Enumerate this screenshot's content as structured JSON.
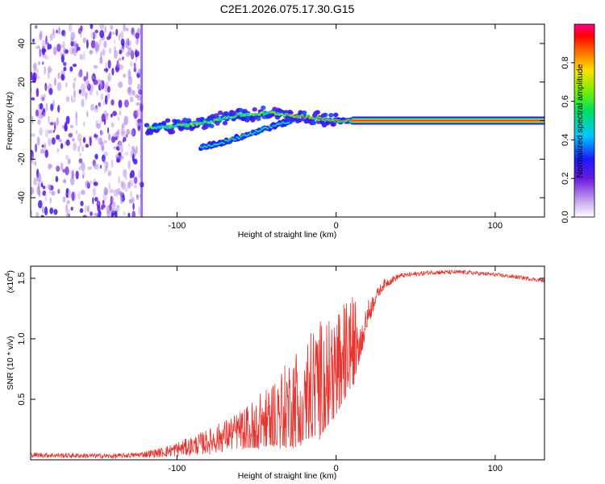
{
  "chart_data": [
    {
      "type": "heatmap",
      "title": "C2E1.2026.075.17.30.G15",
      "xlabel": "Height of straight line (km)",
      "ylabel": "Frequency (Hz)",
      "xlim": [
        -192,
        131
      ],
      "ylim": [
        -50,
        50
      ],
      "xticks": [
        -100,
        0,
        100
      ],
      "yticks": [
        -40,
        -20,
        0,
        20,
        40
      ],
      "xtick_labels": [
        "-100",
        "0",
        "100"
      ],
      "ytick_labels": [
        "-40",
        "-20",
        "0",
        "20",
        "40"
      ],
      "colorbar": {
        "label": "Normalized spectral amplitude",
        "range": [
          0,
          1
        ],
        "ticks": [
          0.0,
          0.2,
          0.4,
          0.6,
          0.8
        ],
        "tick_labels": [
          "0.0",
          "0.2",
          "0.4",
          "0.6",
          "0.8"
        ]
      },
      "features": [
        {
          "name": "scattered noise region",
          "x_range": [
            -192,
            -122
          ],
          "freq_range": [
            -50,
            50
          ],
          "amplitude": 0.15
        },
        {
          "name": "main frequency ridge",
          "points": [
            [
              -118,
              -4
            ],
            [
              -90,
              -2
            ],
            [
              -60,
              3
            ],
            [
              -40,
              4
            ],
            [
              -20,
              2
            ],
            [
              0,
              0
            ],
            [
              10,
              0
            ],
            [
              131,
              0
            ]
          ],
          "amplitude": 0.95
        },
        {
          "name": "secondary ridge",
          "points": [
            [
              -85,
              -14
            ],
            [
              -70,
              -11
            ],
            [
              -55,
              -7
            ],
            [
              -40,
              -3
            ],
            [
              -28,
              0
            ]
          ],
          "amplitude": 0.5
        }
      ]
    },
    {
      "type": "line",
      "xlabel": "Height of straight line (km)",
      "ylabel": "SNR (10 * v/v)",
      "scale_label": "(x10",
      "scale_exponent": "4",
      "scale_suffix": ")",
      "xlim": [
        -192,
        131
      ],
      "ylim": [
        0,
        1.6
      ],
      "xticks": [
        -100,
        0,
        100
      ],
      "yticks": [
        0.5,
        1.0,
        1.5
      ],
      "xtick_labels": [
        "-100",
        "0",
        "100"
      ],
      "ytick_labels": [
        "0.5",
        "1.0",
        "1.5"
      ],
      "color": "#e8322d",
      "series": [
        {
          "name": "SNR",
          "envelope": [
            [
              -192,
              0.04
            ],
            [
              -140,
              0.03
            ],
            [
              -125,
              0.04
            ],
            [
              -110,
              0.06
            ],
            [
              -95,
              0.1
            ],
            [
              -80,
              0.15
            ],
            [
              -65,
              0.22
            ],
            [
              -50,
              0.3
            ],
            [
              -40,
              0.38
            ],
            [
              -30,
              0.45
            ],
            [
              -22,
              0.55
            ],
            [
              -15,
              0.62
            ],
            [
              -10,
              0.66
            ],
            [
              -5,
              0.72
            ],
            [
              0,
              0.78
            ],
            [
              5,
              0.88
            ],
            [
              10,
              0.96
            ],
            [
              15,
              1.05
            ],
            [
              20,
              1.2
            ],
            [
              25,
              1.35
            ],
            [
              30,
              1.45
            ],
            [
              40,
              1.52
            ],
            [
              60,
              1.55
            ],
            [
              80,
              1.55
            ],
            [
              100,
              1.53
            ],
            [
              120,
              1.5
            ],
            [
              131,
              1.48
            ]
          ],
          "noise_amplitude": [
            [
              -192,
              0.02
            ],
            [
              -125,
              0.02
            ],
            [
              -110,
              0.04
            ],
            [
              -90,
              0.08
            ],
            [
              -60,
              0.16
            ],
            [
              -40,
              0.28
            ],
            [
              -25,
              0.42
            ],
            [
              -10,
              0.5
            ],
            [
              0,
              0.45
            ],
            [
              10,
              0.4
            ],
            [
              18,
              0.15
            ],
            [
              25,
              0.05
            ],
            [
              40,
              0.02
            ],
            [
              131,
              0.015
            ]
          ]
        }
      ]
    }
  ]
}
